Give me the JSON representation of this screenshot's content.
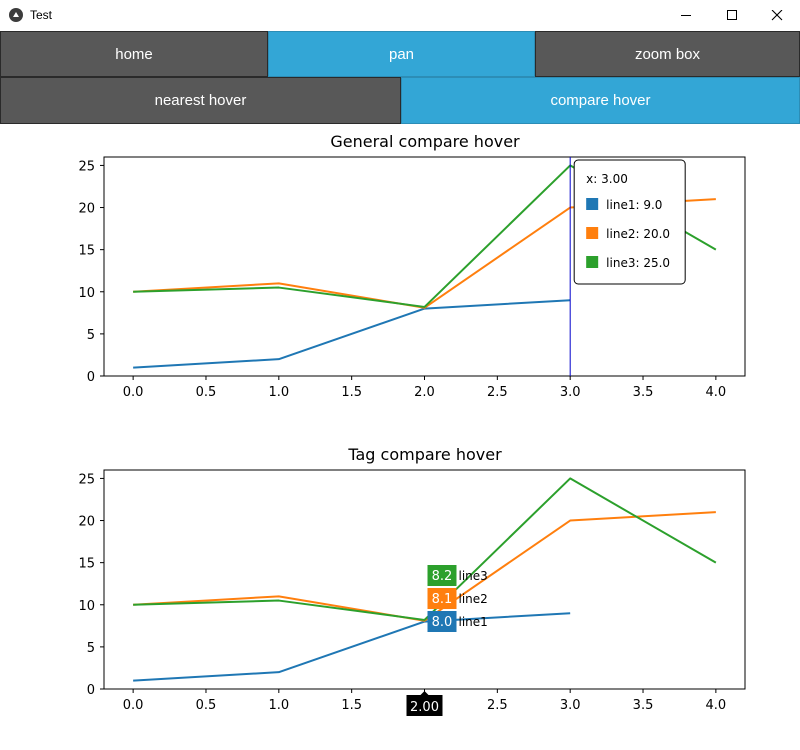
{
  "window": {
    "title": "Test",
    "controls": [
      "minimize",
      "maximize",
      "close"
    ]
  },
  "toolbar": {
    "row1": [
      {
        "label": "home",
        "active": false
      },
      {
        "label": "pan",
        "active": true
      },
      {
        "label": "zoom box",
        "active": false
      }
    ],
    "row2": [
      {
        "label": "nearest hover",
        "active": false
      },
      {
        "label": "compare hover",
        "active": true
      }
    ]
  },
  "colors": {
    "line1": "#1f77b4",
    "line2": "#ff7f0e",
    "line3": "#2ca02c",
    "active_button": "#33a6d6",
    "inactive_button": "#585858",
    "hover_line": "#0000cc"
  },
  "chart_data": [
    {
      "type": "line",
      "title": "General compare hover",
      "x": [
        0,
        1,
        2,
        3,
        4
      ],
      "xticks": [
        "0.0",
        "0.5",
        "1.0",
        "1.5",
        "2.0",
        "2.5",
        "3.0",
        "3.5",
        "4.0"
      ],
      "yticks": [
        "0",
        "5",
        "10",
        "15",
        "20",
        "25"
      ],
      "xlim": [
        -0.2,
        4.2
      ],
      "ylim": [
        0,
        26
      ],
      "series": [
        {
          "name": "line1",
          "values": [
            1,
            2,
            8,
            9,
            null
          ]
        },
        {
          "name": "line2",
          "values": [
            10,
            11,
            8.1,
            20,
            21
          ]
        },
        {
          "name": "line3",
          "values": [
            10,
            10.5,
            8.2,
            25,
            15
          ]
        }
      ],
      "hover": {
        "x": 3,
        "label": "x: 3.00",
        "entries": [
          {
            "name": "line1",
            "value": "9.0",
            "text": "line1: 9.0"
          },
          {
            "name": "line2",
            "value": "20.0",
            "text": "line2: 20.0"
          },
          {
            "name": "line3",
            "value": "25.0",
            "text": "line3: 25.0"
          }
        ]
      }
    },
    {
      "type": "line",
      "title": "Tag compare hover",
      "x": [
        0,
        1,
        2,
        3,
        4
      ],
      "xticks": [
        "0.0",
        "0.5",
        "1.0",
        "1.5",
        "2.0",
        "2.5",
        "3.0",
        "3.5",
        "4.0"
      ],
      "yticks": [
        "0",
        "5",
        "10",
        "15",
        "20",
        "25"
      ],
      "xlim": [
        -0.2,
        4.2
      ],
      "ylim": [
        0,
        26
      ],
      "series": [
        {
          "name": "line1",
          "values": [
            1,
            2,
            8,
            9,
            null
          ]
        },
        {
          "name": "line2",
          "values": [
            10,
            11,
            8.1,
            20,
            21
          ]
        },
        {
          "name": "line3",
          "values": [
            10,
            10.5,
            8.2,
            25,
            15
          ]
        }
      ],
      "hover": {
        "x": 2,
        "x_tag": "2.00",
        "tags": [
          {
            "name": "line3",
            "value": "8.2"
          },
          {
            "name": "line2",
            "value": "8.1"
          },
          {
            "name": "line1",
            "value": "8.0"
          }
        ]
      }
    }
  ]
}
